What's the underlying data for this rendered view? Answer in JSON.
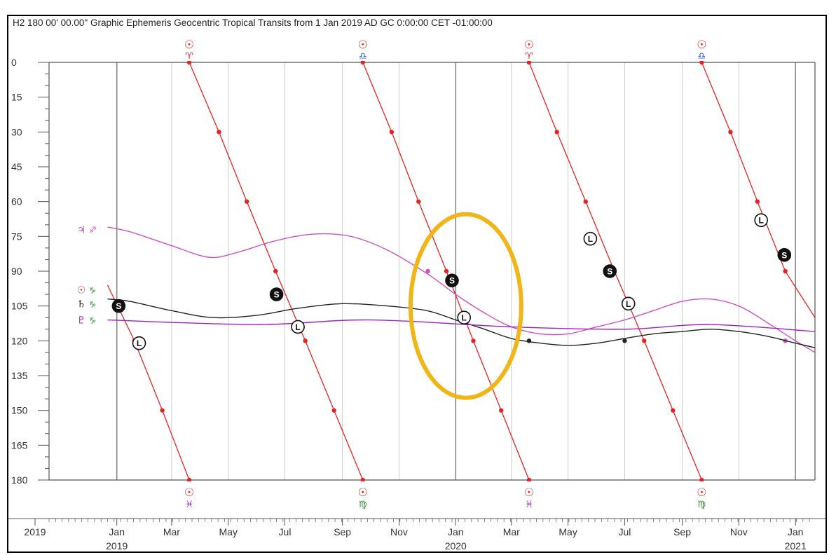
{
  "chart_data": {
    "type": "line",
    "title": "H2   180 00' 00.00\" Graphic Ephemeris Geocentric Tropical Transits from 1 Jan 2019 AD GC 0:00:00 CET -01:00:00",
    "y_ticks": [
      "0",
      "15",
      "30",
      "45",
      "60",
      "75",
      "90",
      "105",
      "120",
      "135",
      "150",
      "165",
      "180"
    ],
    "ylim": [
      0,
      180
    ],
    "y_inverted": true,
    "xlim": [
      "2018-10-20",
      "2021-01-22"
    ],
    "x_labels": [
      {
        "date": "2018-10-20",
        "top": "2019",
        "bottom": ""
      },
      {
        "date": "2019-01-01",
        "top": "Jan",
        "bottom": "2019"
      },
      {
        "date": "2019-03-01",
        "top": "Mar",
        "bottom": ""
      },
      {
        "date": "2019-05-01",
        "top": "May",
        "bottom": ""
      },
      {
        "date": "2019-07-01",
        "top": "Jul",
        "bottom": ""
      },
      {
        "date": "2019-09-01",
        "top": "Sep",
        "bottom": ""
      },
      {
        "date": "2019-11-01",
        "top": "Nov",
        "bottom": ""
      },
      {
        "date": "2020-01-01",
        "top": "Jan",
        "bottom": "2020"
      },
      {
        "date": "2020-03-01",
        "top": "Mar",
        "bottom": ""
      },
      {
        "date": "2020-05-01",
        "top": "May",
        "bottom": ""
      },
      {
        "date": "2020-07-01",
        "top": "Jul",
        "bottom": ""
      },
      {
        "date": "2020-09-01",
        "top": "Sep",
        "bottom": ""
      },
      {
        "date": "2020-11-01",
        "top": "Nov",
        "bottom": ""
      },
      {
        "date": "2021-01-01",
        "top": "Jan",
        "bottom": "2021"
      }
    ],
    "major_gridlines": [
      "2019-01-01",
      "2020-01-01",
      "2021-01-01"
    ],
    "minor_gridlines": [
      "2019-03-01",
      "2019-05-01",
      "2019-07-01",
      "2019-09-01",
      "2019-11-01",
      "2020-03-01",
      "2020-05-01",
      "2020-07-01",
      "2020-09-01",
      "2020-11-01"
    ],
    "colors": {
      "sun": "#e8231f",
      "jupiter": "#d050c0",
      "saturn": "#222222",
      "pluto": "#a020c0",
      "aries": "#e8231f",
      "libra": "#3050e0",
      "pisces": "#a020c0",
      "virgo": "#2a8a2a",
      "capricorn": "#2a8a2a",
      "highlight": "#f2b518",
      "grid_major": "#888888",
      "grid_minor": "#cccccc",
      "axis": "#555555"
    },
    "series": [
      {
        "key": "sun_aries_2019",
        "color": "#e8231f",
        "points": [
          [
            "2019-03-20",
            0
          ],
          [
            "2019-04-21",
            30
          ],
          [
            "2019-05-21",
            60
          ],
          [
            "2019-06-21",
            90
          ],
          [
            "2019-07-23",
            120
          ],
          [
            "2019-08-23",
            150
          ],
          [
            "2019-09-23",
            180
          ]
        ],
        "dots": [
          [
            "2019-03-20",
            0
          ],
          [
            "2019-04-21",
            30
          ],
          [
            "2019-05-21",
            60
          ],
          [
            "2019-06-21",
            90
          ],
          [
            "2019-07-23",
            120
          ],
          [
            "2019-08-23",
            150
          ],
          [
            "2019-09-23",
            180
          ]
        ]
      },
      {
        "key": "sun_capricorn_2019",
        "color": "#e8231f",
        "points": [
          [
            "2018-12-22",
            96
          ],
          [
            "2019-01-20",
            120
          ],
          [
            "2019-02-19",
            150
          ],
          [
            "2019-03-20",
            180
          ]
        ],
        "dots": [
          [
            "2019-01-20",
            120
          ],
          [
            "2019-02-19",
            150
          ],
          [
            "2019-03-20",
            180
          ]
        ]
      },
      {
        "key": "sun_libra_2019",
        "color": "#e8231f",
        "points": [
          [
            "2019-09-23",
            0
          ],
          [
            "2019-10-24",
            30
          ],
          [
            "2019-11-22",
            60
          ],
          [
            "2019-12-22",
            90
          ],
          [
            "2020-01-20",
            120
          ],
          [
            "2020-02-19",
            150
          ],
          [
            "2020-03-20",
            180
          ]
        ],
        "dots": [
          [
            "2019-09-23",
            0
          ],
          [
            "2019-10-24",
            30
          ],
          [
            "2019-11-22",
            60
          ],
          [
            "2019-12-22",
            90
          ],
          [
            "2020-01-20",
            120
          ],
          [
            "2020-02-19",
            150
          ],
          [
            "2020-03-20",
            180
          ]
        ]
      },
      {
        "key": "sun_aries_2020",
        "color": "#e8231f",
        "points": [
          [
            "2020-03-20",
            0
          ],
          [
            "2020-04-19",
            30
          ],
          [
            "2020-05-20",
            60
          ],
          [
            "2020-06-20",
            90
          ],
          [
            "2020-07-22",
            120
          ],
          [
            "2020-08-22",
            150
          ],
          [
            "2020-09-22",
            180
          ]
        ],
        "dots": [
          [
            "2020-03-20",
            0
          ],
          [
            "2020-04-19",
            30
          ],
          [
            "2020-05-20",
            60
          ],
          [
            "2020-06-20",
            90
          ],
          [
            "2020-07-22",
            120
          ],
          [
            "2020-08-22",
            150
          ],
          [
            "2020-09-22",
            180
          ]
        ]
      },
      {
        "key": "sun_libra_2020",
        "color": "#e8231f",
        "points": [
          [
            "2020-09-22",
            0
          ],
          [
            "2020-10-23",
            30
          ],
          [
            "2020-11-21",
            60
          ],
          [
            "2020-12-21",
            90
          ],
          [
            "2021-01-22",
            110
          ]
        ],
        "dots": [
          [
            "2020-09-22",
            0
          ],
          [
            "2020-10-23",
            30
          ],
          [
            "2020-11-21",
            60
          ],
          [
            "2020-12-21",
            90
          ]
        ]
      },
      {
        "key": "jupiter_sagittarius",
        "color": "#d050c0",
        "points": [
          [
            "2018-12-22",
            71
          ],
          [
            "2019-01-15",
            73
          ],
          [
            "2019-03-01",
            79
          ],
          [
            "2019-04-10",
            84
          ],
          [
            "2019-05-10",
            82
          ],
          [
            "2019-06-20",
            77
          ],
          [
            "2019-08-01",
            74
          ],
          [
            "2019-09-10",
            75
          ],
          [
            "2019-10-20",
            81
          ],
          [
            "2019-12-01",
            91
          ],
          [
            "2020-01-01",
            100
          ],
          [
            "2020-02-01",
            108
          ],
          [
            "2020-03-01",
            114
          ],
          [
            "2020-04-01",
            117
          ],
          [
            "2020-05-01",
            117
          ],
          [
            "2020-06-01",
            114
          ],
          [
            "2020-07-01",
            111
          ],
          [
            "2020-08-01",
            107
          ],
          [
            "2020-09-01",
            103
          ],
          [
            "2020-10-01",
            102
          ],
          [
            "2020-11-01",
            105
          ],
          [
            "2020-12-01",
            112
          ],
          [
            "2021-01-01",
            120
          ],
          [
            "2021-01-22",
            125
          ]
        ],
        "dots": [
          [
            "2019-12-02",
            90
          ],
          [
            "2020-12-21",
            120
          ]
        ]
      },
      {
        "key": "saturn_capricorn",
        "color": "#222222",
        "points": [
          [
            "2018-12-22",
            102
          ],
          [
            "2019-01-15",
            103
          ],
          [
            "2019-03-01",
            107
          ],
          [
            "2019-04-15",
            110
          ],
          [
            "2019-06-01",
            109
          ],
          [
            "2019-07-15",
            106
          ],
          [
            "2019-09-01",
            104
          ],
          [
            "2019-10-20",
            105
          ],
          [
            "2019-12-01",
            107
          ],
          [
            "2020-01-01",
            111
          ],
          [
            "2020-02-01",
            115
          ],
          [
            "2020-03-01",
            119
          ],
          [
            "2020-04-01",
            121
          ],
          [
            "2020-05-01",
            122
          ],
          [
            "2020-06-01",
            121
          ],
          [
            "2020-07-01",
            119
          ],
          [
            "2020-08-01",
            117
          ],
          [
            "2020-09-01",
            116
          ],
          [
            "2020-10-01",
            115
          ],
          [
            "2020-11-01",
            116
          ],
          [
            "2020-12-01",
            118
          ],
          [
            "2021-01-01",
            121
          ],
          [
            "2021-01-22",
            123
          ]
        ],
        "dots": [
          [
            "2020-03-20",
            120
          ],
          [
            "2020-07-01",
            120
          ]
        ]
      },
      {
        "key": "pluto_capricorn",
        "color": "#a020c0",
        "points": [
          [
            "2018-12-22",
            111
          ],
          [
            "2019-06-01",
            113
          ],
          [
            "2019-10-01",
            111
          ],
          [
            "2020-03-01",
            114
          ],
          [
            "2020-07-01",
            115
          ],
          [
            "2020-10-01",
            113
          ],
          [
            "2021-01-22",
            116
          ]
        ],
        "dots": []
      }
    ],
    "circle_markers": [
      {
        "label": "S",
        "filled": true,
        "date": "2019-01-03",
        "value": 105
      },
      {
        "label": "L",
        "filled": false,
        "date": "2019-01-25",
        "value": 121
      },
      {
        "label": "S",
        "filled": true,
        "date": "2019-06-22",
        "value": 100
      },
      {
        "label": "L",
        "filled": false,
        "date": "2019-07-15",
        "value": 114
      },
      {
        "label": "S",
        "filled": true,
        "date": "2019-12-28",
        "value": 94
      },
      {
        "label": "L",
        "filled": false,
        "date": "2020-01-10",
        "value": 110
      },
      {
        "label": "L",
        "filled": false,
        "date": "2020-05-25",
        "value": 76
      },
      {
        "label": "S",
        "filled": true,
        "date": "2020-06-15",
        "value": 90
      },
      {
        "label": "L",
        "filled": false,
        "date": "2020-07-05",
        "value": 104
      },
      {
        "label": "L",
        "filled": false,
        "date": "2020-11-25",
        "value": 68
      },
      {
        "label": "S",
        "filled": true,
        "date": "2020-12-20",
        "value": 83
      }
    ],
    "top_glyphs": [
      {
        "date": "2019-03-20",
        "body": "☉",
        "sign": "♈",
        "sign_key": "aries"
      },
      {
        "date": "2019-09-23",
        "body": "☉",
        "sign": "♎",
        "sign_key": "libra"
      },
      {
        "date": "2020-03-20",
        "body": "☉",
        "sign": "♈",
        "sign_key": "aries"
      },
      {
        "date": "2020-09-22",
        "body": "☉",
        "sign": "♎",
        "sign_key": "libra"
      }
    ],
    "bottom_glyphs": [
      {
        "date": "2019-03-20",
        "body": "☉",
        "sign": "♓",
        "sign_key": "pisces"
      },
      {
        "date": "2019-09-23",
        "body": "☉",
        "sign": "♍",
        "sign_key": "virgo"
      },
      {
        "date": "2020-03-20",
        "body": "☉",
        "sign": "♓",
        "sign_key": "pisces"
      },
      {
        "date": "2020-09-22",
        "body": "☉",
        "sign": "♍",
        "sign_key": "virgo"
      }
    ],
    "left_glyphs": [
      {
        "value": 72,
        "body": "♃",
        "sign": "♐",
        "body_key": "jupiter",
        "sign_key": "jupiter"
      },
      {
        "value": 98,
        "body": "☉",
        "sign": "♑",
        "body_key": "sun",
        "sign_key": "capricorn"
      },
      {
        "value": 104,
        "body": "♄",
        "sign": "♑",
        "body_key": "saturn",
        "sign_key": "capricorn"
      },
      {
        "value": 111,
        "body": "♇",
        "sign": "♑",
        "body_key": "pluto",
        "sign_key": "capricorn"
      }
    ],
    "highlight_ellipse": {
      "date": "2020-01-12",
      "value": 105
    }
  }
}
